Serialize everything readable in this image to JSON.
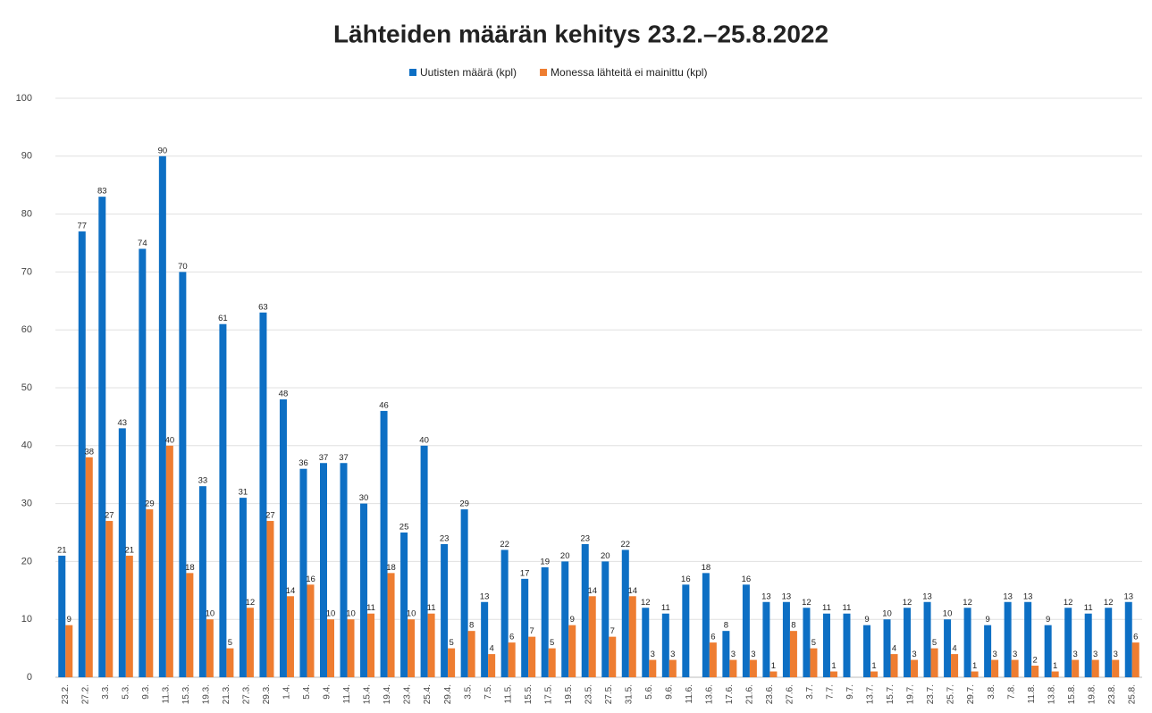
{
  "chart_data": {
    "type": "bar",
    "title": "Lähteiden määrän kehitys 23.2.–25.8.2022",
    "categories": [
      "23.2.",
      "27.2.",
      "3.3.",
      "5.3.",
      "9.3.",
      "11.3.",
      "15.3.",
      "19.3.",
      "21.3.",
      "27.3.",
      "29.3.",
      "1.4.",
      "5.4.",
      "9.4.",
      "11.4.",
      "15.4.",
      "19.4.",
      "23.4.",
      "25.4.",
      "29.4.",
      "3.5.",
      "7.5.",
      "11.5.",
      "15.5.",
      "17.5.",
      "19.5.",
      "23.5.",
      "27.5.",
      "31.5.",
      "5.6.",
      "9.6.",
      "11.6.",
      "13.6.",
      "17.6.",
      "21.6.",
      "23.6.",
      "27.6.",
      "3.7.",
      "7.7.",
      "9.7.",
      "13.7.",
      "15.7.",
      "19.7.",
      "23.7.",
      "25.7.",
      "29.7.",
      "3.8.",
      "7.8.",
      "11.8.",
      "13.8.",
      "15.8.",
      "19.8.",
      "23.8.",
      "25.8."
    ],
    "series": [
      {
        "name": "Uutisten määrä (kpl)",
        "color": "#0d6fc4",
        "values": [
          21,
          77,
          83,
          43,
          74,
          90,
          70,
          33,
          61,
          31,
          63,
          48,
          36,
          37,
          37,
          30,
          46,
          25,
          40,
          23,
          29,
          13,
          22,
          17,
          19,
          20,
          23,
          20,
          22,
          12,
          11,
          16,
          18,
          8,
          16,
          13,
          13,
          12,
          11,
          11,
          9,
          10,
          12,
          13,
          10,
          12,
          9,
          13,
          13,
          9,
          12,
          11,
          12,
          13
        ]
      },
      {
        "name": "Monessa lähteitä ei mainittu (kpl)",
        "color": "#ee7d31",
        "values": [
          9,
          38,
          27,
          21,
          29,
          40,
          18,
          10,
          5,
          12,
          27,
          14,
          16,
          10,
          10,
          11,
          18,
          10,
          11,
          5,
          8,
          4,
          6,
          7,
          5,
          9,
          14,
          7,
          14,
          3,
          3,
          null,
          6,
          3,
          3,
          1,
          8,
          5,
          1,
          null,
          1,
          4,
          3,
          5,
          4,
          1,
          3,
          3,
          2,
          1,
          3,
          3,
          3,
          6
        ]
      }
    ],
    "ylim": [
      0,
      100
    ],
    "yticks": [
      0,
      10,
      20,
      30,
      40,
      50,
      60,
      70,
      80,
      90,
      100
    ],
    "grid": true,
    "legend": "top"
  }
}
